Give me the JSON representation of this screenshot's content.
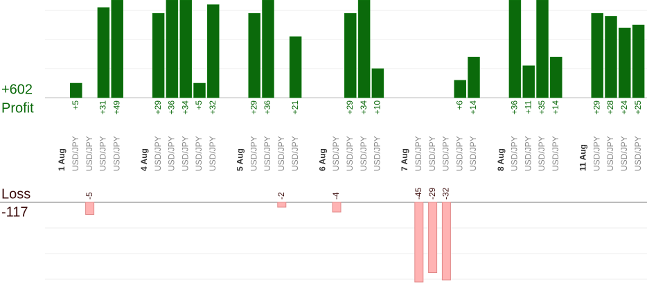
{
  "chart_data": {
    "type": "bar",
    "categories": [
      "1 Aug",
      "USD/JPY",
      "USD/JPY",
      "USD/JPY",
      "USD/JPY",
      null,
      "4 Aug",
      "USD/JPY",
      "USD/JPY",
      "USD/JPY",
      "USD/JPY",
      "USD/JPY",
      null,
      "5 Aug",
      "USD/JPY",
      "USD/JPY",
      "USD/JPY",
      "USD/JPY",
      null,
      "6 Aug",
      "USD/JPY",
      "USD/JPY",
      "USD/JPY",
      "USD/JPY",
      null,
      "7 Aug",
      "USD/JPY",
      "USD/JPY",
      "USD/JPY",
      "USD/JPY",
      "USD/JPY",
      null,
      "8 Aug",
      "USD/JPY",
      "USD/JPY",
      "USD/JPY",
      "USD/JPY",
      null,
      "11 Aug",
      "USD/JPY",
      "USD/JPY",
      "USD/JPY",
      "USD/JPY"
    ],
    "series": [
      {
        "name": "Profit",
        "color": "#0b6a0b",
        "total": 602,
        "total_label": "+602",
        "values": [
          null,
          5,
          null,
          31,
          49,
          null,
          null,
          29,
          36,
          34,
          5,
          32,
          null,
          null,
          29,
          36,
          null,
          21,
          null,
          null,
          null,
          29,
          34,
          10,
          null,
          null,
          null,
          null,
          null,
          6,
          14,
          null,
          null,
          36,
          11,
          35,
          14,
          null,
          null,
          29,
          28,
          24,
          25
        ],
        "value_labels": [
          null,
          "+5",
          null,
          "+31",
          "+49",
          null,
          null,
          "+29",
          "+36",
          "+34",
          "+5",
          "+32",
          null,
          null,
          "+29",
          "+36",
          null,
          "+21",
          null,
          null,
          null,
          "+29",
          "+34",
          "+10",
          null,
          null,
          null,
          null,
          null,
          "+6",
          "+14",
          null,
          null,
          "+36",
          "+11",
          "+35",
          "+14",
          null,
          null,
          "+29",
          "+28",
          "+24",
          "+25"
        ]
      },
      {
        "name": "Loss",
        "color": "#ffb3b3",
        "total": -117,
        "values": [
          null,
          null,
          -5,
          null,
          null,
          null,
          null,
          null,
          null,
          null,
          null,
          null,
          null,
          null,
          null,
          null,
          -2,
          null,
          null,
          null,
          -4,
          null,
          null,
          null,
          null,
          null,
          -45,
          -29,
          -32,
          null,
          null,
          null,
          null,
          null,
          null,
          null,
          null,
          null,
          null,
          null,
          null,
          null,
          null
        ]
      }
    ]
  }
}
